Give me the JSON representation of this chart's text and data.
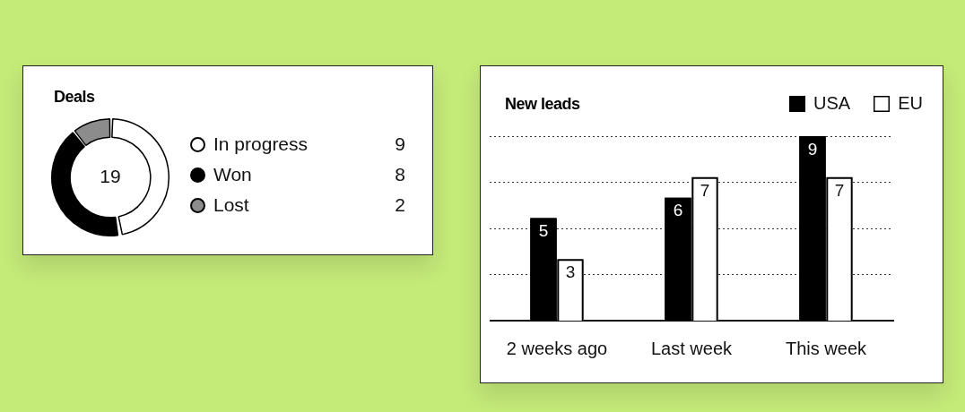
{
  "chart_data": [
    {
      "type": "donut",
      "title": "Deals",
      "categories": [
        "In progress",
        "Won",
        "Lost"
      ],
      "values": [
        9,
        8,
        2
      ],
      "colors": [
        "#ffffff",
        "#000000",
        "#8c8c8c"
      ],
      "annotations": [
        "19"
      ],
      "data_labels": true,
      "legend": "right"
    },
    {
      "type": "bar",
      "title": "New leads",
      "categories": [
        "2 weeks ago",
        "Last week",
        "This week"
      ],
      "series": [
        {
          "name": "USA",
          "color": "#000000",
          "values": [
            5,
            6,
            9
          ]
        },
        {
          "name": "EU",
          "color": "#ffffff",
          "values": [
            3,
            7,
            7
          ]
        }
      ],
      "ylim": [
        0,
        9
      ],
      "yticks": [
        {
          "value": 2.25,
          "label": null
        },
        {
          "value": 4.5,
          "label": null
        },
        {
          "value": 6.75,
          "label": null
        },
        {
          "value": 9,
          "label": null
        }
      ],
      "grid": "y",
      "tick_labels": "x",
      "data_labels": true,
      "legend": "top right"
    }
  ]
}
